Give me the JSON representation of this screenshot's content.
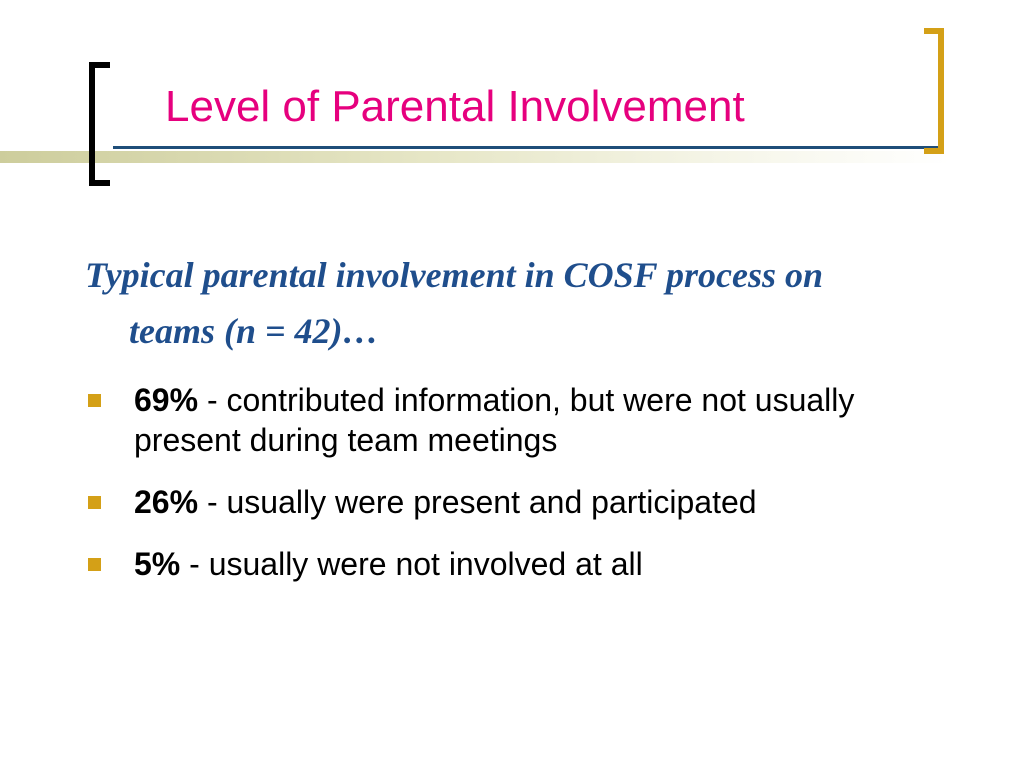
{
  "slide": {
    "title": "Level of Parental Involvement",
    "lead": "Typical parental involvement in COSF process on teams (n = 42)…",
    "bullets": [
      {
        "value": "69%",
        "text": " - contributed information, but were not usually present during team meetings"
      },
      {
        "value": "26%",
        "text": " - usually were present and participated"
      },
      {
        "value": "5%",
        "text": " - usually were not involved at all"
      }
    ]
  },
  "colors": {
    "title": "#e6007e",
    "lead": "#1f4e8c",
    "bullet_marker": "#d4a017",
    "left_bracket": "#000000",
    "right_bracket": "#d4a017",
    "title_rule": "#1f4e79"
  }
}
